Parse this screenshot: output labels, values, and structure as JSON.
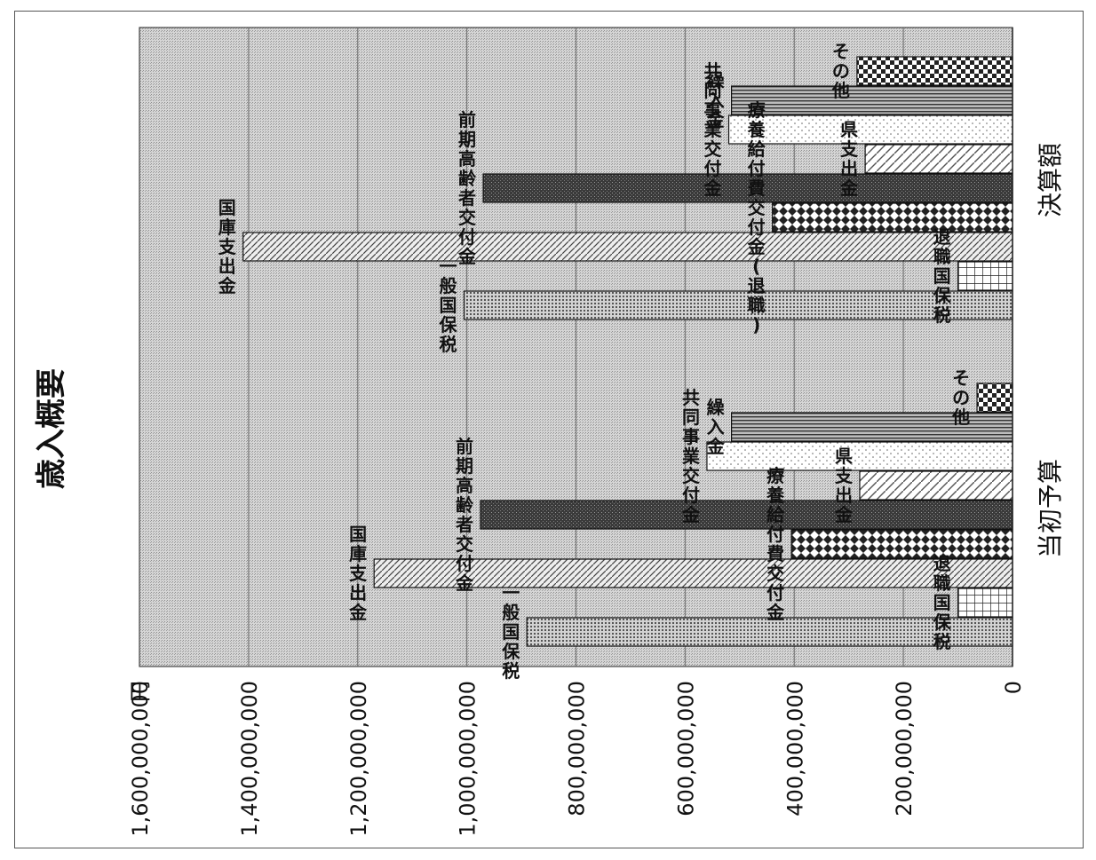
{
  "chart_data": {
    "type": "bar",
    "title": "歳入概要",
    "ylabel_unit": "円",
    "ylim": [
      0,
      1600000000
    ],
    "yticks": [
      0,
      200000000,
      400000000,
      600000000,
      800000000,
      1000000000,
      1200000000,
      1400000000,
      1600000000
    ],
    "ytick_labels": [
      "0",
      "200,000,000",
      "400,000,000",
      "600,000,000",
      "800,000,000",
      "1,000,000,000",
      "1,200,000,000",
      "1,400,000,000",
      "1,600,000,000"
    ],
    "grid": true,
    "orientation": "rotated-90-ccw",
    "groups": [
      {
        "name": "当初予算",
        "bars": [
          {
            "label": "一般国保税",
            "value": 890000000,
            "pattern": "dots"
          },
          {
            "label": "退職国保税",
            "value": 100000000,
            "pattern": "grid"
          },
          {
            "label": "国庫支出金",
            "value": 1170000000,
            "pattern": "diag"
          },
          {
            "label": "療養給付費交付金",
            "value": 405000000,
            "pattern": "diamond"
          },
          {
            "label": "前期高齢者交付金",
            "value": 975000000,
            "pattern": "dark"
          },
          {
            "label": "県支出金",
            "value": 280000000,
            "pattern": "diag2"
          },
          {
            "label": "共同事業交付金",
            "value": 560000000,
            "pattern": "sparse"
          },
          {
            "label": "繰入金",
            "value": 515000000,
            "pattern": "vlines"
          },
          {
            "label": "その他",
            "value": 65000000,
            "pattern": "check"
          }
        ]
      },
      {
        "name": "決算額",
        "bars": [
          {
            "label": "一般国保税",
            "value": 1005000000,
            "pattern": "dots"
          },
          {
            "label": "退職国保税",
            "value": 100000000,
            "pattern": "grid"
          },
          {
            "label": "国庫支出金",
            "value": 1410000000,
            "pattern": "diag"
          },
          {
            "label": "療養給付費交付金(退職)",
            "value": 440000000,
            "pattern": "diamond"
          },
          {
            "label": "前期高齢者交付金",
            "value": 970000000,
            "pattern": "dark"
          },
          {
            "label": "県支出金",
            "value": 270000000,
            "pattern": "diag2"
          },
          {
            "label": "共同事業交付金",
            "value": 520000000,
            "pattern": "sparse"
          },
          {
            "label": "繰入金",
            "value": 515000000,
            "pattern": "vlines"
          },
          {
            "label": "その他",
            "value": 285000000,
            "pattern": "check"
          }
        ]
      }
    ]
  }
}
